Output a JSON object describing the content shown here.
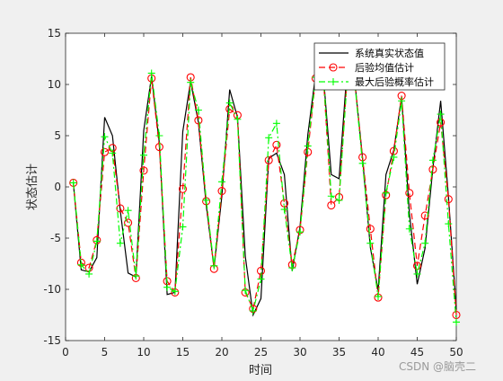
{
  "chart_data": {
    "type": "line",
    "xlabel": "时间",
    "ylabel": "状态估计",
    "xlim": [
      0,
      50
    ],
    "ylim": [
      -15,
      15
    ],
    "xticks": [
      0,
      5,
      10,
      15,
      20,
      25,
      30,
      35,
      40,
      45,
      50
    ],
    "yticks": [
      -15,
      -10,
      -5,
      0,
      5,
      10,
      15
    ],
    "legend_position": "top-right",
    "x": [
      1,
      2,
      3,
      4,
      5,
      6,
      7,
      8,
      9,
      10,
      11,
      12,
      13,
      14,
      15,
      16,
      17,
      18,
      19,
      20,
      21,
      22,
      23,
      24,
      25,
      26,
      27,
      28,
      29,
      30,
      31,
      32,
      33,
      34,
      35,
      36,
      37,
      38,
      39,
      40,
      41,
      42,
      43,
      44,
      45,
      46,
      47,
      48,
      49,
      50
    ],
    "series": [
      {
        "name": "系统真实状态值",
        "color": "#000000",
        "style": "solid",
        "marker": "none",
        "values": [
          0.3,
          -8.1,
          -8.3,
          -6.9,
          6.8,
          5.0,
          -2.3,
          -8.4,
          -8.8,
          5.5,
          10.8,
          4.3,
          -10.5,
          -10.3,
          5.4,
          10.3,
          6.3,
          -1.8,
          -7.9,
          -0.9,
          9.5,
          6.8,
          -6.8,
          -12.5,
          -10.9,
          2.8,
          3.3,
          1.2,
          -8.2,
          -3.9,
          5.1,
          11.0,
          10.8,
          1.2,
          0.8,
          11.2,
          10.4,
          2.8,
          -5.9,
          -10.1,
          1.2,
          3.6,
          8.8,
          -2.6,
          -9.5,
          -6.0,
          1.8,
          8.4,
          -1.0,
          -12.0
        ]
      },
      {
        "name": "后验均值估计",
        "color": "#ff0000",
        "style": "dashed",
        "marker": "circle",
        "values": [
          0.4,
          -7.4,
          -7.9,
          -5.2,
          3.4,
          3.8,
          -2.1,
          -3.5,
          -8.9,
          1.6,
          10.6,
          3.9,
          -9.2,
          -10.3,
          -0.2,
          10.7,
          6.5,
          -1.4,
          -8.0,
          -0.4,
          7.6,
          7.0,
          -10.3,
          -11.9,
          -8.2,
          2.6,
          4.1,
          -1.6,
          -7.6,
          -4.2,
          3.4,
          10.6,
          10.6,
          -1.8,
          -1.0,
          10.4,
          10.3,
          2.9,
          -4.1,
          -10.8,
          -0.8,
          3.5,
          8.9,
          -0.6,
          -7.7,
          -2.8,
          1.7,
          6.3,
          -1.2,
          -12.5
        ]
      },
      {
        "name": "最大后验概率估计",
        "color": "#00ff00",
        "style": "dashdot",
        "marker": "plus",
        "values": [
          0.4,
          -7.6,
          -8.5,
          -5.3,
          4.9,
          3.3,
          -5.5,
          -2.3,
          -8.7,
          3.1,
          11.1,
          5.0,
          -9.8,
          -10.2,
          -3.9,
          10.2,
          7.5,
          -1.3,
          -7.7,
          0.5,
          8.2,
          6.6,
          -10.1,
          -12.1,
          -9.0,
          4.8,
          6.2,
          -2.2,
          -7.9,
          -4.4,
          4.0,
          10.7,
          10.8,
          -0.9,
          -1.3,
          10.1,
          10.2,
          2.3,
          -5.5,
          -10.7,
          -0.6,
          2.9,
          8.4,
          -4.1,
          -8.5,
          -5.5,
          2.6,
          7.1,
          -3.6,
          -13.2
        ]
      }
    ]
  },
  "watermark": "CSDN @脑壳二"
}
